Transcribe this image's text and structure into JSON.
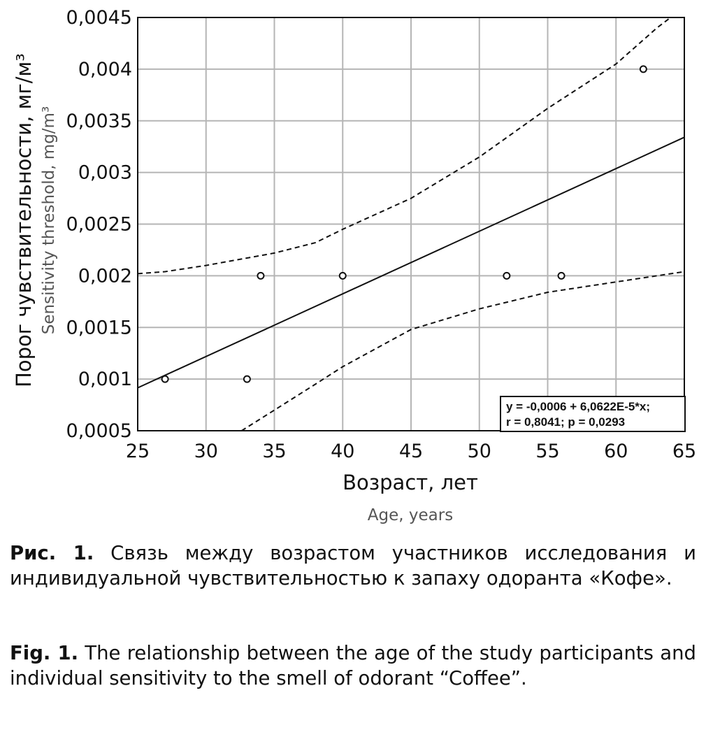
{
  "chart_data": {
    "type": "scatter",
    "xlim": [
      25,
      65
    ],
    "ylim": [
      0.0005,
      0.0045
    ],
    "x_ticks": [
      25,
      30,
      35,
      40,
      45,
      50,
      55,
      60,
      65
    ],
    "x_tick_labels": [
      "25",
      "30",
      "35",
      "40",
      "45",
      "50",
      "55",
      "60",
      "65"
    ],
    "y_ticks": [
      0.0005,
      0.001,
      0.0015,
      0.002,
      0.0025,
      0.003,
      0.0035,
      0.004,
      0.0045
    ],
    "y_tick_labels": [
      "0,0005",
      "0,001",
      "0,0015",
      "0,002",
      "0,0025",
      "0,003",
      "0,0035",
      "0,004",
      "0,0045"
    ],
    "grid": true,
    "points": [
      {
        "x": 27,
        "y": 0.001
      },
      {
        "x": 33,
        "y": 0.001
      },
      {
        "x": 34,
        "y": 0.002
      },
      {
        "x": 40,
        "y": 0.002
      },
      {
        "x": 52,
        "y": 0.002
      },
      {
        "x": 56,
        "y": 0.002
      },
      {
        "x": 62,
        "y": 0.004
      }
    ],
    "regression": {
      "intercept": -0.0006,
      "slope": 6.0622e-05
    },
    "confidence_upper": [
      {
        "x": 25,
        "y": 0.00202
      },
      {
        "x": 27,
        "y": 0.00204
      },
      {
        "x": 30,
        "y": 0.0021
      },
      {
        "x": 35,
        "y": 0.00222
      },
      {
        "x": 38,
        "y": 0.00232
      },
      {
        "x": 40,
        "y": 0.00245
      },
      {
        "x": 45,
        "y": 0.00275
      },
      {
        "x": 50,
        "y": 0.00315
      },
      {
        "x": 55,
        "y": 0.00362
      },
      {
        "x": 60,
        "y": 0.00405
      },
      {
        "x": 63,
        "y": 0.0044
      },
      {
        "x": 64,
        "y": 0.0045
      }
    ],
    "confidence_lower": [
      {
        "x": 32.6,
        "y": 0.0005
      },
      {
        "x": 35,
        "y": 0.0007
      },
      {
        "x": 38,
        "y": 0.00095
      },
      {
        "x": 40,
        "y": 0.00112
      },
      {
        "x": 45,
        "y": 0.00148
      },
      {
        "x": 50,
        "y": 0.00168
      },
      {
        "x": 55,
        "y": 0.00184
      },
      {
        "x": 60,
        "y": 0.00194
      },
      {
        "x": 65,
        "y": 0.00204
      }
    ],
    "xlabel": "Возраст, лет",
    "xlabel_en": "Age, years",
    "ylabel": "Порог чувствительности, мг/м³",
    "ylabel_en": "Sensitivity threshold, mg/m³",
    "annotation": [
      "y = -0,0006 + 6,0622E-5*x;",
      "r = 0,8041; p = 0,0293"
    ],
    "annotation_position": "bottom-right"
  },
  "caption_ru": {
    "label": "Рис. 1.",
    "text": " Связь между возрастом участников исследования и индивидуальной чувствительностью к запаху одоранта «Кофе»."
  },
  "caption_en": {
    "label": "Fig. 1.",
    "text": " The relationship between the age of the study participants and individual sensitivity to the smell of odorant “Coffee”."
  }
}
